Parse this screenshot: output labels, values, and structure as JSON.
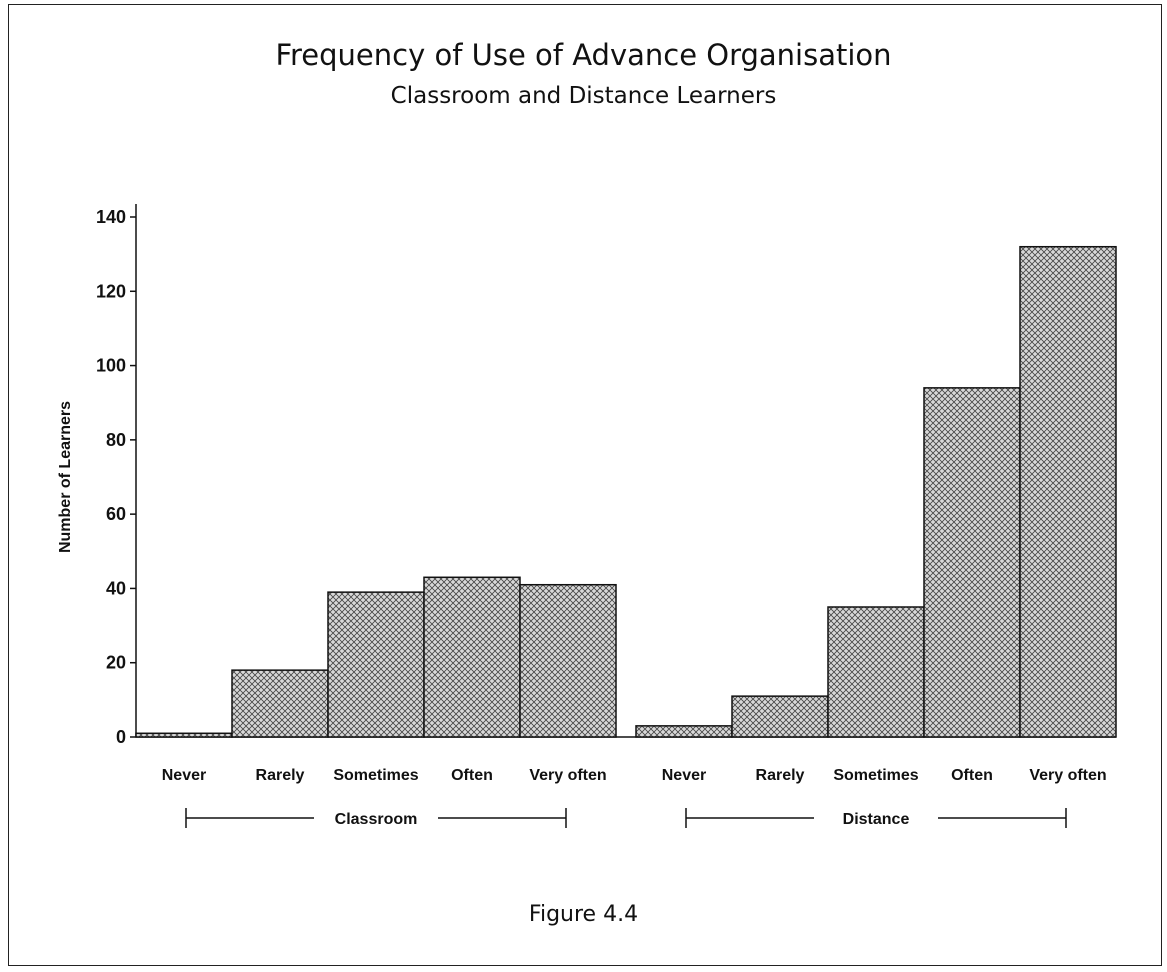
{
  "figure": {
    "caption": "Figure 4.4"
  },
  "chart_data": {
    "type": "bar",
    "title": "Frequency of Use of Advance Organisation",
    "subtitle": "Classroom and Distance Learners",
    "xlabel": "",
    "ylabel": "Number of Learners",
    "ylim": [
      0,
      140
    ],
    "yticks": [
      0,
      20,
      40,
      60,
      80,
      100,
      120,
      140
    ],
    "grid": false,
    "legend": "none",
    "fill_pattern": "crosshatch",
    "colors": {
      "bar_fill": "#cfcfcf",
      "hatch": "#444444",
      "outline": "#111111"
    },
    "groups": [
      {
        "name": "Classroom",
        "categories": [
          "Never",
          "Rarely",
          "Sometimes",
          "Often",
          "Very often"
        ],
        "values": [
          1,
          18,
          39,
          43,
          41
        ]
      },
      {
        "name": "Distance",
        "categories": [
          "Never",
          "Rarely",
          "Sometimes",
          "Often",
          "Very often"
        ],
        "values": [
          3,
          11,
          35,
          94,
          132
        ]
      }
    ]
  }
}
